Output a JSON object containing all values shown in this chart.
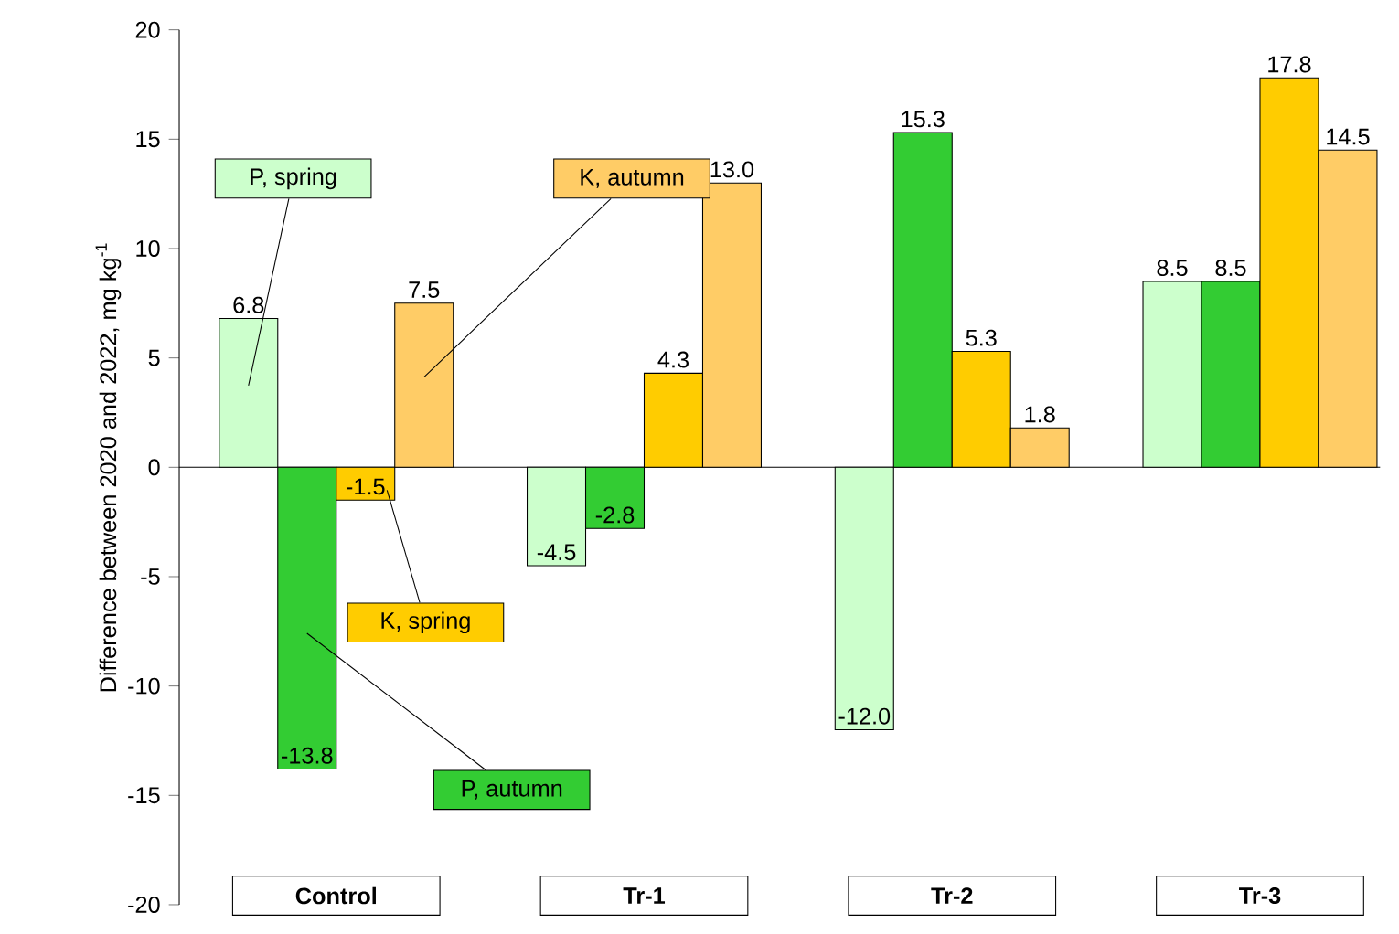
{
  "chart_data": {
    "type": "bar",
    "ylabel": "Difference between 2020 and 2022,   mg kg$^{-1}$",
    "categories": [
      "Control",
      "Tr-1",
      "Tr-2",
      "Tr-3"
    ],
    "series": [
      {
        "name": "P, spring",
        "color": "#ccffcc",
        "values": [
          6.8,
          -4.5,
          -12.0,
          8.5
        ],
        "value_labels": [
          "6.8",
          "-4.5",
          "-12.0",
          "8.5"
        ]
      },
      {
        "name": "P, autumn",
        "color": "#33cc33",
        "values": [
          -13.8,
          -2.8,
          15.3,
          8.5
        ],
        "value_labels": [
          "-13.8",
          "-2.8",
          "15.3",
          "8.5"
        ]
      },
      {
        "name": "K, spring",
        "color": "#ffcc00",
        "values": [
          -1.5,
          4.3,
          5.3,
          17.8
        ],
        "value_labels": [
          "-1.5",
          "4.3",
          "5.3",
          "17.8"
        ]
      },
      {
        "name": "K, autumn",
        "color": "#ffcc66",
        "values": [
          7.5,
          13.0,
          1.8,
          14.5
        ],
        "value_labels": [
          "7.5",
          "13.0",
          "1.8",
          "14.5"
        ]
      }
    ],
    "ylim": [
      -20,
      20
    ],
    "yticks": [
      -20,
      -15,
      -10,
      -5,
      0,
      5,
      10,
      15,
      20
    ]
  }
}
